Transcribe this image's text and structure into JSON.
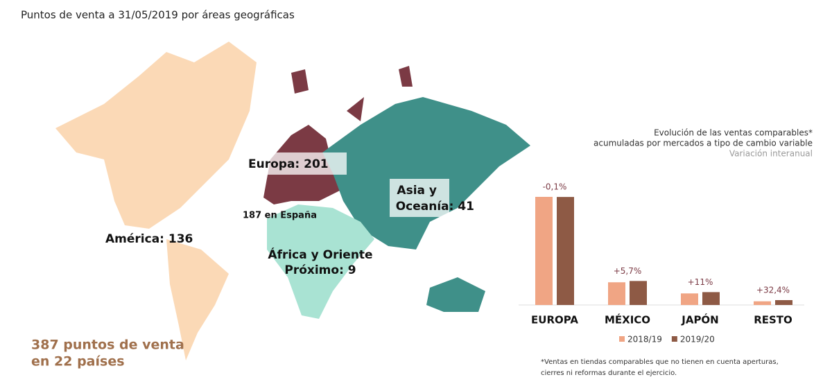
{
  "header": {
    "title": "Puntos de venta a 31/05/2019 por áreas geográficas"
  },
  "map": {
    "labels": {
      "europa": "Europa: 201",
      "espana": "187 en España",
      "asia": [
        "Asia y",
        "Oceanía: 41"
      ],
      "america": "América: 136",
      "africa": [
        "África y Oriente",
        "Próximo: 9"
      ]
    },
    "total": [
      "387 puntos de venta",
      "en 22 países"
    ]
  },
  "chart_data": {
    "type": "bar",
    "title": [
      "Evolución de las ventas comparables*",
      "acumuladas por mercados a tipo de cambio variable"
    ],
    "subtitle": "Variación interanual",
    "categories": [
      "EUROPA",
      "MÉXICO",
      "JAPÓN",
      "RESTO"
    ],
    "series": [
      {
        "name": "2018/19",
        "color": "#f0a584",
        "values": [
          100,
          21,
          10.7,
          3.4
        ]
      },
      {
        "name": "2019/20",
        "color": "#8e5a45",
        "values": [
          99.9,
          22.2,
          11.9,
          4.5
        ]
      }
    ],
    "growth_labels": [
      "-0,1%",
      "+5,7%",
      "+11%",
      "+32,4%"
    ],
    "ylim": [
      0,
      100
    ],
    "footnote": [
      "*Ventas en tiendas comparables que no tienen en cuenta aperturas,",
      "cierres ni reformas durante el ejercicio."
    ]
  }
}
